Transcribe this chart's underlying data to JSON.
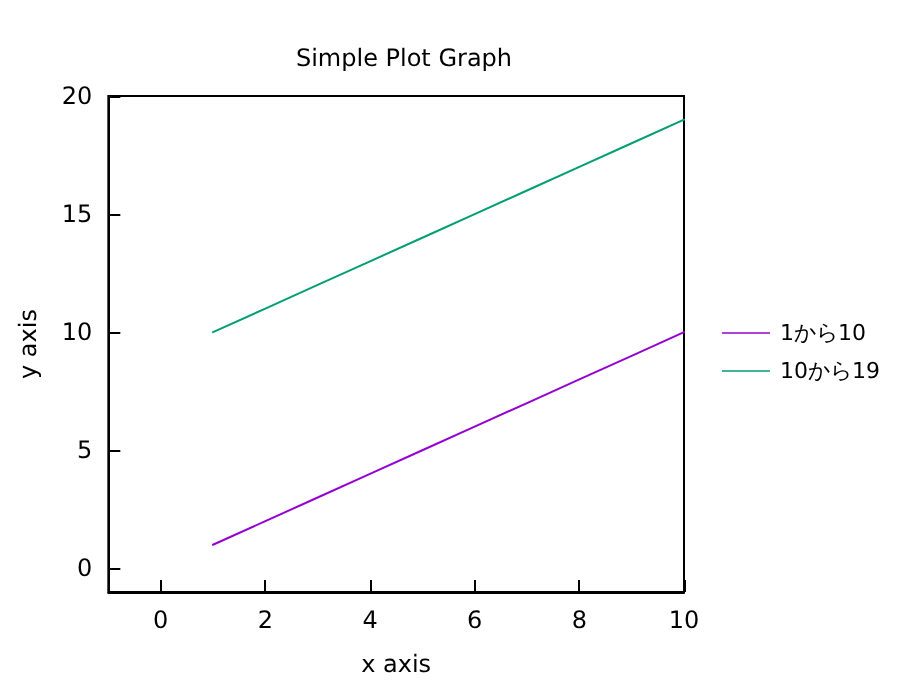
{
  "chart_data": {
    "type": "line",
    "title": "Simple Plot Graph",
    "xlabel": "x axis",
    "ylabel": "y axis",
    "x": [
      1,
      2,
      3,
      4,
      5,
      6,
      7,
      8,
      9,
      10
    ],
    "series": [
      {
        "name": "1から10",
        "color": "#9400d3",
        "values": [
          1,
          2,
          3,
          4,
          5,
          6,
          7,
          8,
          9,
          10
        ]
      },
      {
        "name": "10から19",
        "color": "#009e73",
        "values": [
          10,
          11,
          12,
          13,
          14,
          15,
          16,
          17,
          18,
          19
        ]
      }
    ],
    "xlim": [
      -1,
      10
    ],
    "xticks": [
      0,
      2,
      4,
      6,
      8,
      10
    ],
    "ylim": [
      -1,
      20
    ],
    "yticks": [
      0,
      5,
      10,
      15,
      20
    ],
    "grid": false,
    "legend": "right",
    "marker": "none",
    "line_style": "solid"
  }
}
